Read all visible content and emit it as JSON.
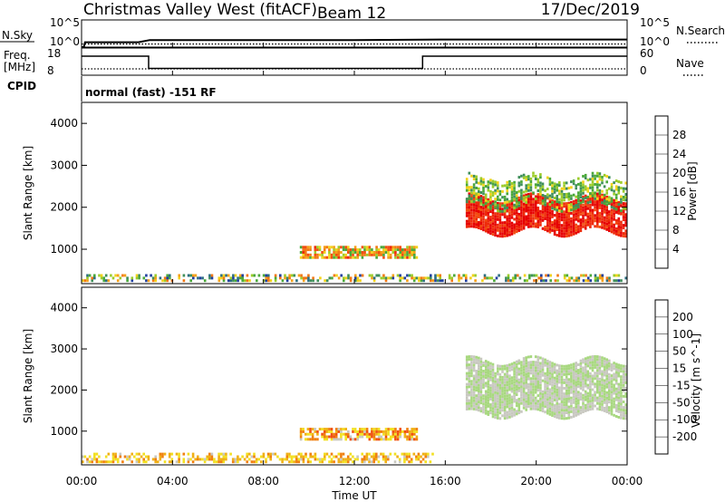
{
  "header": {
    "title": "Christmas Valley West (fitACF)",
    "beam": "Beam 12",
    "date": "17/Dec/2019"
  },
  "panel_nsky": {
    "left_label": "N.Sky",
    "right_label": "N.Search",
    "left_ticks": [
      "10^5",
      "10^0"
    ],
    "right_ticks": [
      "10^5",
      "10^0"
    ]
  },
  "panel_freq": {
    "left_label_1": "Freq.",
    "left_label_2": "[MHz]",
    "right_label": "Nave",
    "left_ticks": [
      "18",
      "8"
    ],
    "right_ticks": [
      "60",
      "0"
    ]
  },
  "panel_cpid": {
    "label": "CPID",
    "text": "normal (fast) -151 RF"
  },
  "colors": {
    "power": [
      "#0018ff",
      "#1f3fa0",
      "#2b6e80",
      "#3f8f5a",
      "#4aa83a",
      "#9ccc2a",
      "#f2d21a",
      "#f5a018",
      "#f27814",
      "#f24d10",
      "#ee2a0a",
      "#e60000"
    ],
    "velocity": [
      "#2030c0",
      "#1f55a8",
      "#207a66",
      "#2a9a30",
      "#58c02a",
      "#a8d880",
      "#c8c8c0",
      "#f2e020",
      "#f0b015",
      "#f08010",
      "#f05010",
      "#e60000"
    ]
  },
  "time_axis": {
    "label": "Time UT",
    "ticks": [
      "00:00",
      "04:00",
      "08:00",
      "12:00",
      "16:00",
      "20:00",
      "00:00"
    ]
  },
  "chart_data": [
    {
      "type": "line",
      "name": "nsky-nsearch",
      "x_range_hours": [
        0,
        24
      ],
      "title": "",
      "ylabel_left": "N.Sky",
      "ylabel_right": "N.Search",
      "ylim_left": [
        1,
        100000
      ],
      "log_scale": true,
      "series": [
        {
          "name": "N.Sky",
          "x": [
            0,
            0.1,
            0.15,
            2.5,
            3.0,
            12,
            15.8,
            16.2,
            24
          ],
          "y": [
            1,
            1,
            8,
            8,
            20,
            20,
            25,
            25,
            25
          ]
        },
        {
          "name": "N.Search",
          "x": [
            0,
            24
          ],
          "y": [
            8,
            8
          ]
        }
      ]
    },
    {
      "type": "line",
      "name": "freq-nave",
      "ylabel_left": "Freq. [MHz]",
      "ylabel_right": "Nave",
      "ylim_left": [
        8,
        18
      ],
      "ylim_right": [
        0,
        60
      ],
      "series": [
        {
          "name": "Freq",
          "x": [
            0,
            2.95,
            2.95,
            15.0,
            15.0,
            24
          ],
          "y": [
            15,
            15,
            10.5,
            10.5,
            15,
            15
          ]
        },
        {
          "name": "Nave",
          "x": [
            0,
            24
          ],
          "y": [
            14,
            14
          ]
        }
      ]
    },
    {
      "type": "heatmap",
      "name": "power",
      "x_range_hours": [
        0,
        24
      ],
      "ylabel": "Slant Range [km]",
      "ylim": [
        180,
        4500
      ],
      "yticks": [
        1000,
        2000,
        3000,
        4000
      ],
      "colorbar_label": "Power [dB]",
      "colorbar_range": [
        0,
        32
      ],
      "colorbar_ticks": [
        "4",
        "8",
        "12",
        "16",
        "20",
        "24",
        "28"
      ],
      "regions": [
        {
          "x": [
            0.0,
            24.0
          ],
          "y": [
            200,
            450
          ],
          "level": [
            0.1,
            0.75
          ],
          "density": 0.45
        },
        {
          "x": [
            9.6,
            14.8
          ],
          "y": [
            820,
            1130
          ],
          "level": [
            0.35,
            0.85
          ],
          "density": 0.75
        },
        {
          "x": [
            16.9,
            24.0
          ],
          "y": [
            1450,
            2300
          ],
          "level": [
            0.8,
            1.0
          ],
          "density": 0.9
        },
        {
          "x": [
            16.9,
            24.0
          ],
          "y": [
            2050,
            2800
          ],
          "level": [
            0.25,
            0.55
          ],
          "density": 0.55
        }
      ]
    },
    {
      "type": "heatmap",
      "name": "velocity",
      "x_range_hours": [
        0,
        24
      ],
      "ylabel": "Slant Range [km]",
      "ylim": [
        180,
        4500
      ],
      "yticks": [
        1000,
        2000,
        3000,
        4000
      ],
      "colorbar_label": "Velocity [m s^-1]",
      "colorbar_range": [
        -250,
        250
      ],
      "colorbar_ticks": [
        "200",
        "100",
        "50",
        "15",
        "-15",
        "-50",
        "-100",
        "-200"
      ],
      "regions": [
        {
          "x": [
            0.0,
            15.5
          ],
          "y": [
            200,
            520
          ],
          "level": [
            0.55,
            0.8
          ],
          "density": 0.5
        },
        {
          "x": [
            9.6,
            14.8
          ],
          "y": [
            820,
            1130
          ],
          "level": [
            0.55,
            0.9
          ],
          "density": 0.75
        },
        {
          "x": [
            16.9,
            24.0
          ],
          "y": [
            1450,
            2800
          ],
          "level": [
            0.45,
            0.55
          ],
          "density": 0.9
        }
      ]
    }
  ]
}
